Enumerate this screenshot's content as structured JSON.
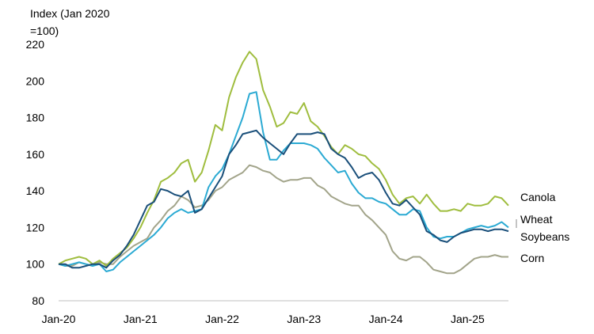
{
  "chart_data": {
    "type": "line",
    "ylabel": "Index (Jan 2020\n=100)",
    "ylim": [
      80,
      220
    ],
    "yticks": [
      80,
      100,
      120,
      140,
      160,
      180,
      200,
      220
    ],
    "xlim": [
      "2020-01",
      "2025-07"
    ],
    "xticks": [
      {
        "date": "2020-01",
        "label": "Jan-20"
      },
      {
        "date": "2021-01",
        "label": "Jan-21"
      },
      {
        "date": "2022-01",
        "label": "Jan-22"
      },
      {
        "date": "2023-01",
        "label": "Jan-23"
      },
      {
        "date": "2024-01",
        "label": "Jan-24"
      },
      {
        "date": "2025-01",
        "label": "Jan-25"
      }
    ],
    "grid": false,
    "legend": "inline-right",
    "series": [
      {
        "name": "Canola",
        "color": "#9fbd3e",
        "points": [
          [
            "2020-01",
            100
          ],
          [
            "2020-02",
            102
          ],
          [
            "2020-03",
            103
          ],
          [
            "2020-04",
            104
          ],
          [
            "2020-05",
            103
          ],
          [
            "2020-06",
            100
          ],
          [
            "2020-07",
            102
          ],
          [
            "2020-08",
            99
          ],
          [
            "2020-09",
            103
          ],
          [
            "2020-10",
            106
          ],
          [
            "2020-11",
            109
          ],
          [
            "2020-12",
            114
          ],
          [
            "2021-01",
            120
          ],
          [
            "2021-02",
            128
          ],
          [
            "2021-03",
            135
          ],
          [
            "2021-04",
            145
          ],
          [
            "2021-05",
            147
          ],
          [
            "2021-06",
            150
          ],
          [
            "2021-07",
            155
          ],
          [
            "2021-08",
            157
          ],
          [
            "2021-09",
            145
          ],
          [
            "2021-10",
            150
          ],
          [
            "2021-11",
            162
          ],
          [
            "2021-12",
            176
          ],
          [
            "2022-01",
            173
          ],
          [
            "2022-02",
            191
          ],
          [
            "2022-03",
            202
          ],
          [
            "2022-04",
            210
          ],
          [
            "2022-05",
            216
          ],
          [
            "2022-06",
            212
          ],
          [
            "2022-07",
            195
          ],
          [
            "2022-08",
            186
          ],
          [
            "2022-09",
            175
          ],
          [
            "2022-10",
            177
          ],
          [
            "2022-11",
            183
          ],
          [
            "2022-12",
            182
          ],
          [
            "2023-01",
            188
          ],
          [
            "2023-02",
            178
          ],
          [
            "2023-03",
            175
          ],
          [
            "2023-04",
            170
          ],
          [
            "2023-05",
            164
          ],
          [
            "2023-06",
            160
          ],
          [
            "2023-07",
            165
          ],
          [
            "2023-08",
            163
          ],
          [
            "2023-09",
            160
          ],
          [
            "2023-10",
            159
          ],
          [
            "2023-11",
            155
          ],
          [
            "2023-12",
            152
          ],
          [
            "2024-01",
            146
          ],
          [
            "2024-02",
            138
          ],
          [
            "2024-03",
            133
          ],
          [
            "2024-04",
            136
          ],
          [
            "2024-05",
            137
          ],
          [
            "2024-06",
            133
          ],
          [
            "2024-07",
            138
          ],
          [
            "2024-08",
            133
          ],
          [
            "2024-09",
            129
          ],
          [
            "2024-10",
            129
          ],
          [
            "2024-11",
            130
          ],
          [
            "2024-12",
            129
          ],
          [
            "2025-01",
            133
          ],
          [
            "2025-02",
            132
          ],
          [
            "2025-03",
            132
          ],
          [
            "2025-04",
            133
          ],
          [
            "2025-05",
            137
          ],
          [
            "2025-06",
            136
          ],
          [
            "2025-07",
            132
          ]
        ]
      },
      {
        "name": "Wheat",
        "color": "#2baad3",
        "points": [
          [
            "2020-01",
            100
          ],
          [
            "2020-02",
            99
          ],
          [
            "2020-03",
            100
          ],
          [
            "2020-04",
            101
          ],
          [
            "2020-05",
            100
          ],
          [
            "2020-06",
            99
          ],
          [
            "2020-07",
            100
          ],
          [
            "2020-08",
            96
          ],
          [
            "2020-09",
            97
          ],
          [
            "2020-10",
            101
          ],
          [
            "2020-11",
            104
          ],
          [
            "2020-12",
            107
          ],
          [
            "2021-01",
            110
          ],
          [
            "2021-02",
            113
          ],
          [
            "2021-03",
            116
          ],
          [
            "2021-04",
            120
          ],
          [
            "2021-05",
            125
          ],
          [
            "2021-06",
            128
          ],
          [
            "2021-07",
            130
          ],
          [
            "2021-08",
            128
          ],
          [
            "2021-09",
            129
          ],
          [
            "2021-10",
            130
          ],
          [
            "2021-11",
            142
          ],
          [
            "2021-12",
            148
          ],
          [
            "2022-01",
            152
          ],
          [
            "2022-02",
            160
          ],
          [
            "2022-03",
            170
          ],
          [
            "2022-04",
            180
          ],
          [
            "2022-05",
            193
          ],
          [
            "2022-06",
            194
          ],
          [
            "2022-07",
            172
          ],
          [
            "2022-08",
            157
          ],
          [
            "2022-09",
            157
          ],
          [
            "2022-10",
            162
          ],
          [
            "2022-11",
            166
          ],
          [
            "2022-12",
            166
          ],
          [
            "2023-01",
            166
          ],
          [
            "2023-02",
            165
          ],
          [
            "2023-03",
            163
          ],
          [
            "2023-04",
            158
          ],
          [
            "2023-05",
            154
          ],
          [
            "2023-06",
            150
          ],
          [
            "2023-07",
            151
          ],
          [
            "2023-08",
            144
          ],
          [
            "2023-09",
            139
          ],
          [
            "2023-10",
            136
          ],
          [
            "2023-11",
            136
          ],
          [
            "2023-12",
            134
          ],
          [
            "2024-01",
            133
          ],
          [
            "2024-02",
            130
          ],
          [
            "2024-03",
            127
          ],
          [
            "2024-04",
            127
          ],
          [
            "2024-05",
            130
          ],
          [
            "2024-06",
            129
          ],
          [
            "2024-07",
            120
          ],
          [
            "2024-08",
            115
          ],
          [
            "2024-09",
            114
          ],
          [
            "2024-10",
            115
          ],
          [
            "2024-11",
            115
          ],
          [
            "2024-12",
            117
          ],
          [
            "2025-01",
            119
          ],
          [
            "2025-02",
            120
          ],
          [
            "2025-03",
            121
          ],
          [
            "2025-04",
            120
          ],
          [
            "2025-05",
            121
          ],
          [
            "2025-06",
            123
          ],
          [
            "2025-07",
            120
          ]
        ]
      },
      {
        "name": "Soybeans",
        "color": "#1a4f7a",
        "points": [
          [
            "2020-01",
            100
          ],
          [
            "2020-02",
            100
          ],
          [
            "2020-03",
            98
          ],
          [
            "2020-04",
            98
          ],
          [
            "2020-05",
            99
          ],
          [
            "2020-06",
            100
          ],
          [
            "2020-07",
            100
          ],
          [
            "2020-08",
            98
          ],
          [
            "2020-09",
            102
          ],
          [
            "2020-10",
            105
          ],
          [
            "2020-11",
            110
          ],
          [
            "2020-12",
            116
          ],
          [
            "2021-01",
            124
          ],
          [
            "2021-02",
            132
          ],
          [
            "2021-03",
            134
          ],
          [
            "2021-04",
            141
          ],
          [
            "2021-05",
            140
          ],
          [
            "2021-06",
            138
          ],
          [
            "2021-07",
            137
          ],
          [
            "2021-08",
            140
          ],
          [
            "2021-09",
            128
          ],
          [
            "2021-10",
            130
          ],
          [
            "2021-11",
            136
          ],
          [
            "2021-12",
            142
          ],
          [
            "2022-01",
            148
          ],
          [
            "2022-02",
            160
          ],
          [
            "2022-03",
            165
          ],
          [
            "2022-04",
            171
          ],
          [
            "2022-05",
            172
          ],
          [
            "2022-06",
            173
          ],
          [
            "2022-07",
            169
          ],
          [
            "2022-08",
            166
          ],
          [
            "2022-09",
            163
          ],
          [
            "2022-10",
            160
          ],
          [
            "2022-11",
            166
          ],
          [
            "2022-12",
            171
          ],
          [
            "2023-01",
            171
          ],
          [
            "2023-02",
            171
          ],
          [
            "2023-03",
            172
          ],
          [
            "2023-04",
            171
          ],
          [
            "2023-05",
            163
          ],
          [
            "2023-06",
            160
          ],
          [
            "2023-07",
            158
          ],
          [
            "2023-08",
            153
          ],
          [
            "2023-09",
            147
          ],
          [
            "2023-10",
            149
          ],
          [
            "2023-11",
            150
          ],
          [
            "2023-12",
            146
          ],
          [
            "2024-01",
            139
          ],
          [
            "2024-02",
            133
          ],
          [
            "2024-03",
            132
          ],
          [
            "2024-04",
            135
          ],
          [
            "2024-05",
            131
          ],
          [
            "2024-06",
            127
          ],
          [
            "2024-07",
            118
          ],
          [
            "2024-08",
            116
          ],
          [
            "2024-09",
            113
          ],
          [
            "2024-10",
            112
          ],
          [
            "2024-11",
            115
          ],
          [
            "2024-12",
            117
          ],
          [
            "2025-01",
            118
          ],
          [
            "2025-02",
            119
          ],
          [
            "2025-03",
            119
          ],
          [
            "2025-04",
            118
          ],
          [
            "2025-05",
            119
          ],
          [
            "2025-06",
            119
          ],
          [
            "2025-07",
            118
          ]
        ]
      },
      {
        "name": "Corn",
        "color": "#a2a48a",
        "points": [
          [
            "2020-01",
            100
          ],
          [
            "2020-02",
            99
          ],
          [
            "2020-03",
            99
          ],
          [
            "2020-04",
            101
          ],
          [
            "2020-05",
            100
          ],
          [
            "2020-06",
            99
          ],
          [
            "2020-07",
            101
          ],
          [
            "2020-08",
            100
          ],
          [
            "2020-09",
            100
          ],
          [
            "2020-10",
            104
          ],
          [
            "2020-11",
            107
          ],
          [
            "2020-12",
            110
          ],
          [
            "2021-01",
            112
          ],
          [
            "2021-02",
            114
          ],
          [
            "2021-03",
            120
          ],
          [
            "2021-04",
            124
          ],
          [
            "2021-05",
            129
          ],
          [
            "2021-06",
            132
          ],
          [
            "2021-07",
            137
          ],
          [
            "2021-08",
            135
          ],
          [
            "2021-09",
            131
          ],
          [
            "2021-10",
            132
          ],
          [
            "2021-11",
            135
          ],
          [
            "2021-12",
            140
          ],
          [
            "2022-01",
            142
          ],
          [
            "2022-02",
            146
          ],
          [
            "2022-03",
            148
          ],
          [
            "2022-04",
            150
          ],
          [
            "2022-05",
            154
          ],
          [
            "2022-06",
            153
          ],
          [
            "2022-07",
            151
          ],
          [
            "2022-08",
            150
          ],
          [
            "2022-09",
            147
          ],
          [
            "2022-10",
            145
          ],
          [
            "2022-11",
            146
          ],
          [
            "2022-12",
            146
          ],
          [
            "2023-01",
            147
          ],
          [
            "2023-02",
            147
          ],
          [
            "2023-03",
            143
          ],
          [
            "2023-04",
            141
          ],
          [
            "2023-05",
            137
          ],
          [
            "2023-06",
            135
          ],
          [
            "2023-07",
            133
          ],
          [
            "2023-08",
            132
          ],
          [
            "2023-09",
            132
          ],
          [
            "2023-10",
            127
          ],
          [
            "2023-11",
            124
          ],
          [
            "2023-12",
            120
          ],
          [
            "2024-01",
            116
          ],
          [
            "2024-02",
            107
          ],
          [
            "2024-03",
            103
          ],
          [
            "2024-04",
            102
          ],
          [
            "2024-05",
            104
          ],
          [
            "2024-06",
            104
          ],
          [
            "2024-07",
            101
          ],
          [
            "2024-08",
            97
          ],
          [
            "2024-09",
            96
          ],
          [
            "2024-10",
            95
          ],
          [
            "2024-11",
            95
          ],
          [
            "2024-12",
            97
          ],
          [
            "2025-01",
            100
          ],
          [
            "2025-02",
            103
          ],
          [
            "2025-03",
            104
          ],
          [
            "2025-04",
            104
          ],
          [
            "2025-05",
            105
          ],
          [
            "2025-06",
            104
          ],
          [
            "2025-07",
            104
          ]
        ]
      }
    ]
  }
}
